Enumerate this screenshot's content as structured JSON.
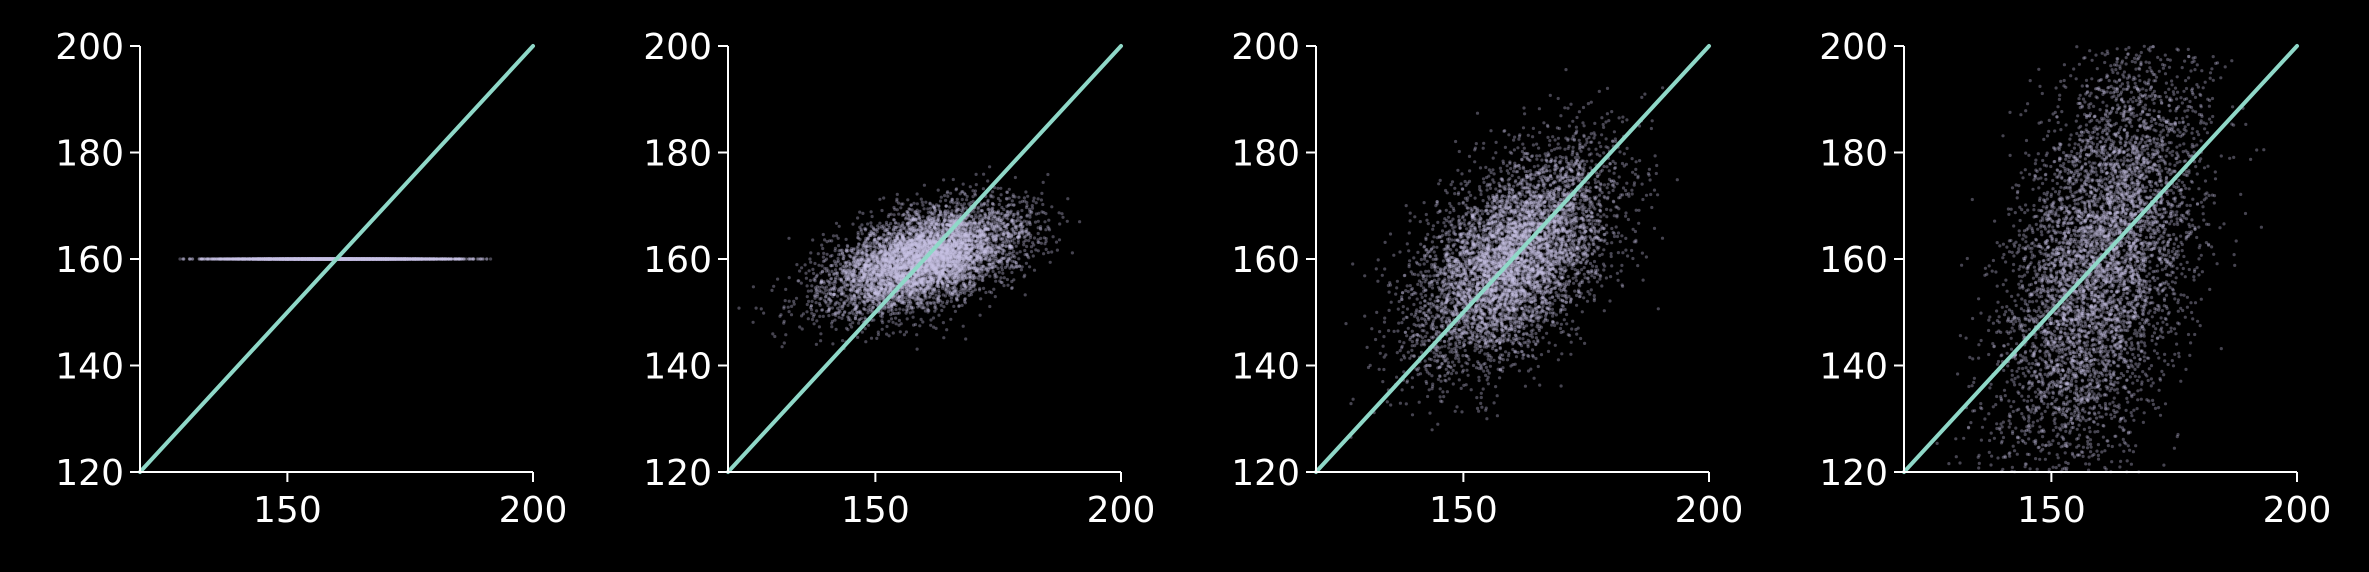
{
  "colors": {
    "background": "#000000",
    "axes": "#ffffff",
    "points": "#c8c4e4",
    "identity_line": "#8fd8c8"
  },
  "chart_data": [
    {
      "type": "scatter",
      "xlim": [
        120,
        200
      ],
      "ylim": [
        120,
        200
      ],
      "xticks": [
        "150",
        "200"
      ],
      "yticks": [
        "120",
        "140",
        "160",
        "180",
        "200"
      ],
      "grid": false,
      "reference_line": {
        "from": [
          120,
          120
        ],
        "to": [
          200,
          200
        ]
      },
      "distribution": {
        "mean_x": 160,
        "mean_y": 160,
        "sd_x": 10,
        "sd_y": 0,
        "corr": 0,
        "n": 6000,
        "x_range": [
          123,
          193
        ]
      }
    },
    {
      "type": "scatter",
      "xlim": [
        120,
        200
      ],
      "ylim": [
        120,
        200
      ],
      "xticks": [
        "150",
        "200"
      ],
      "yticks": [
        "120",
        "140",
        "160",
        "180",
        "200"
      ],
      "grid": false,
      "reference_line": {
        "from": [
          120,
          120
        ],
        "to": [
          200,
          200
        ]
      },
      "distribution": {
        "mean_x": 160,
        "mean_y": 160,
        "sd_x": 10,
        "sd_y": 5,
        "corr": 0.5,
        "n": 6000,
        "x_range": [
          122,
          194
        ]
      }
    },
    {
      "type": "scatter",
      "xlim": [
        120,
        200
      ],
      "ylim": [
        120,
        200
      ],
      "xticks": [
        "150",
        "200"
      ],
      "yticks": [
        "120",
        "140",
        "160",
        "180",
        "200"
      ],
      "grid": false,
      "reference_line": {
        "from": [
          120,
          120
        ],
        "to": [
          200,
          200
        ]
      },
      "distribution": {
        "mean_x": 160,
        "mean_y": 160,
        "sd_x": 10,
        "sd_y": 10,
        "corr": 0.5,
        "n": 6000,
        "x_range": [
          122,
          195
        ]
      }
    },
    {
      "type": "scatter",
      "xlim": [
        120,
        200
      ],
      "ylim": [
        120,
        200
      ],
      "xticks": [
        "150",
        "200"
      ],
      "yticks": [
        "120",
        "140",
        "160",
        "180",
        "200"
      ],
      "grid": false,
      "reference_line": {
        "from": [
          120,
          120
        ],
        "to": [
          200,
          200
        ]
      },
      "distribution": {
        "mean_x": 160,
        "mean_y": 160,
        "sd_x": 10,
        "sd_y": 20,
        "corr": 0.5,
        "n": 6000,
        "x_range": [
          125,
          195
        ]
      }
    }
  ]
}
